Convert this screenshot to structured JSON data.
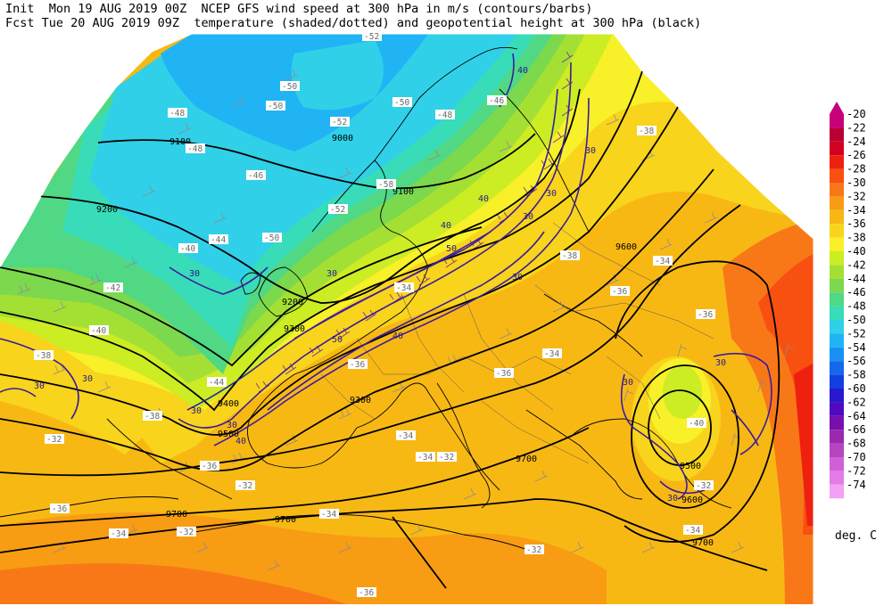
{
  "header": {
    "line1": "Init  Mon 19 AUG 2019 00Z  NCEP GFS wind speed at 300 hPa in m/s (contours/barbs)",
    "line2": "Fcst Tue 20 AUG 2019 09Z  temperature (shaded/dotted) and geopotential height at 300 hPa (black)"
  },
  "legend": {
    "values": [
      "-20",
      "-22",
      "-24",
      "-26",
      "-28",
      "-30",
      "-32",
      "-34",
      "-36",
      "-38",
      "-40",
      "-42",
      "-44",
      "-46",
      "-48",
      "-50",
      "-52",
      "-54",
      "-56",
      "-58",
      "-60",
      "-62",
      "-64",
      "-66",
      "-68",
      "-70",
      "-72",
      "-74"
    ],
    "colors": [
      "#c8007a",
      "#b80034",
      "#d40020",
      "#ee2010",
      "#f85010",
      "#f87818",
      "#f89c14",
      "#f8b814",
      "#f8d41c",
      "#f8f028",
      "#ccec24",
      "#a4e034",
      "#7cd84c",
      "#50d884",
      "#38dcb8",
      "#30d0e8",
      "#20b4f4",
      "#1890f4",
      "#1468ec",
      "#1040e0",
      "#2818d0",
      "#5008c0",
      "#7810b0",
      "#9c28b0",
      "#b844c0",
      "#d060d8",
      "#e47ce8",
      "#f4a0f4"
    ],
    "unit": "deg. C"
  },
  "map": {
    "height_labels": [
      "9100",
      "9200",
      "9000",
      "9100",
      "9200",
      "9300",
      "9400",
      "9500",
      "9300",
      "9600",
      "9700",
      "9500",
      "9600",
      "9700",
      "9700",
      "9700"
    ],
    "wind_labels": [
      "40",
      "40",
      "30",
      "30",
      "40",
      "50",
      "30",
      "40",
      "30",
      "30",
      "30",
      "30",
      "30",
      "30",
      "40",
      "30",
      "50",
      "30",
      "30",
      "30"
    ],
    "temp_labels": [
      "-52",
      "-50",
      "-50",
      "-48",
      "-52",
      "-48",
      "-50",
      "-46",
      "-48",
      "-46",
      "-58",
      "-52",
      "-50",
      "-44",
      "-42",
      "-40",
      "-38",
      "-44",
      "-40",
      "-36",
      "-38",
      "-38",
      "-36",
      "-32",
      "-38",
      "-36",
      "-34",
      "-34",
      "-36",
      "-36",
      "-34",
      "-32",
      "-32",
      "-34",
      "-34",
      "-32",
      "-36",
      "-34",
      "-32",
      "-36",
      "-40",
      "-32",
      "-34",
      "-34"
    ]
  }
}
